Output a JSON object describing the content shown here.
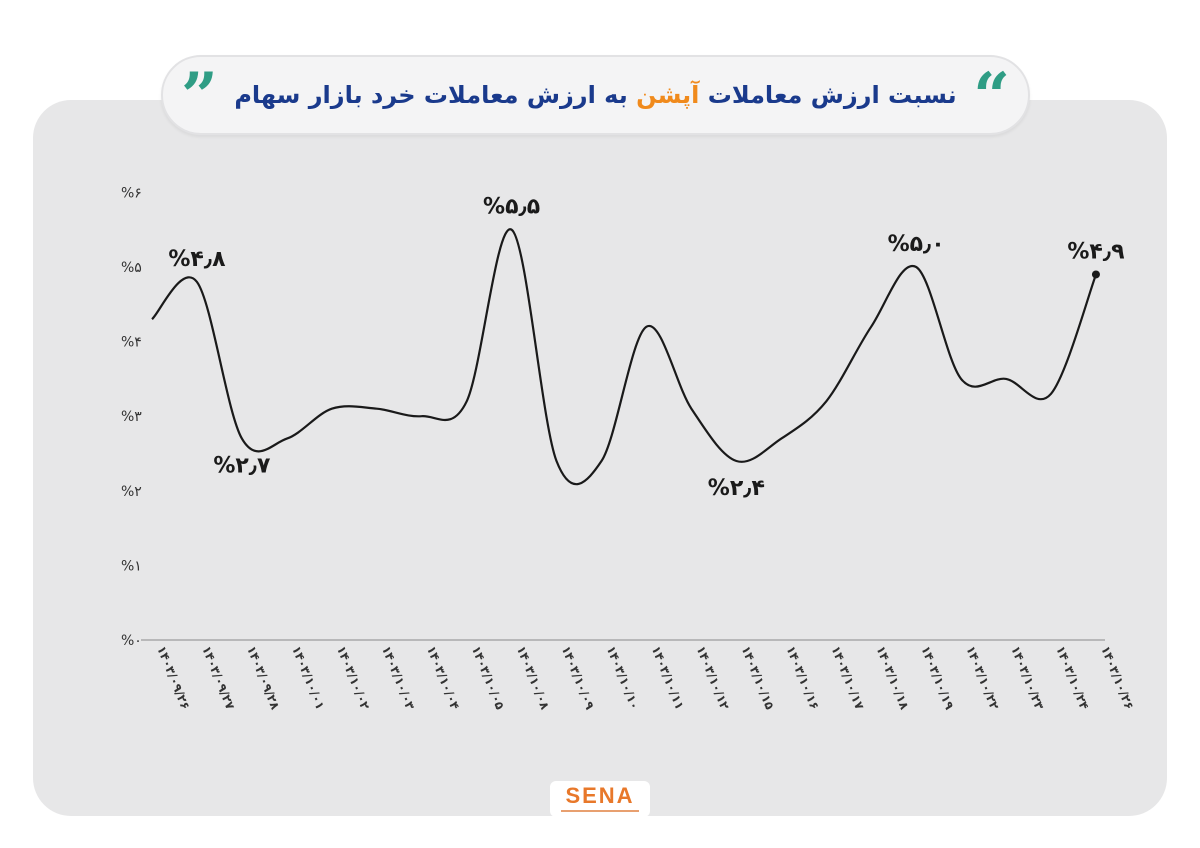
{
  "title": {
    "part1": "نسبت ارزش معاملات",
    "part2": "آپشن",
    "part3": "به ارزش معاملات خرد بازار سهام",
    "accent_color": "#f08a1c",
    "main_color": "#1a3a8c",
    "quote_color": "#2f9d85",
    "quote_icon": "quote-marks-icon"
  },
  "logo": {
    "text": "SENA",
    "color": "#e8782a"
  },
  "chart_data": {
    "type": "line",
    "title": "نسبت ارزش معاملات آپشن به ارزش معاملات خرد بازار سهام",
    "xlabel": "",
    "ylabel": "",
    "ylim": [
      0,
      6
    ],
    "grid": false,
    "line_color": "#1a1a1a",
    "y_ticks": [
      {
        "value": 0,
        "label": "%۰"
      },
      {
        "value": 1,
        "label": "%۱"
      },
      {
        "value": 2,
        "label": "%۲"
      },
      {
        "value": 3,
        "label": "%۳"
      },
      {
        "value": 4,
        "label": "%۴"
      },
      {
        "value": 5,
        "label": "%۵"
      },
      {
        "value": 6,
        "label": "%۶"
      }
    ],
    "categories": [
      "۱۴۰۳/۰۹/۲۶",
      "۱۴۰۳/۰۹/۲۷",
      "۱۴۰۳/۰۹/۲۸",
      "۱۴۰۳/۱۰/۰۱",
      "۱۴۰۳/۱۰/۰۲",
      "۱۴۰۳/۱۰/۰۳",
      "۱۴۰۳/۱۰/۰۴",
      "۱۴۰۳/۱۰/۰۵",
      "۱۴۰۳/۱۰/۰۸",
      "۱۴۰۳/۱۰/۰۹",
      "۱۴۰۳/۱۰/۱۰",
      "۱۴۰۳/۱۰/۱۱",
      "۱۴۰۳/۱۰/۱۲",
      "۱۴۰۳/۱۰/۱۵",
      "۱۴۰۳/۱۰/۱۶",
      "۱۴۰۳/۱۰/۱۷",
      "۱۴۰۳/۱۰/۱۸",
      "۱۴۰۳/۱۰/۱۹",
      "۱۴۰۳/۱۰/۲۲",
      "۱۴۰۳/۱۰/۲۳",
      "۱۴۰۳/۱۰/۲۴",
      "۱۴۰۳/۱۰/۲۶"
    ],
    "series": [
      {
        "values": [
          4.3,
          4.8,
          2.7,
          2.7,
          3.1,
          3.1,
          3.0,
          3.2,
          5.5,
          2.4,
          2.4,
          4.2,
          3.1,
          2.4,
          2.7,
          3.2,
          4.2,
          5.0,
          3.5,
          3.5,
          3.3,
          4.9
        ]
      }
    ],
    "annotations": [
      {
        "index": 1,
        "label": "%۴٫۸",
        "position": "above"
      },
      {
        "index": 2,
        "label": "%۲٫۷",
        "position": "below"
      },
      {
        "index": 8,
        "label": "%۵٫۵",
        "position": "above"
      },
      {
        "index": 13,
        "label": "%۲٫۴",
        "position": "below"
      },
      {
        "index": 17,
        "label": "%۵٫۰",
        "position": "above"
      },
      {
        "index": 21,
        "label": "%۴٫۹",
        "position": "above"
      }
    ],
    "end_marker_index": 21
  }
}
